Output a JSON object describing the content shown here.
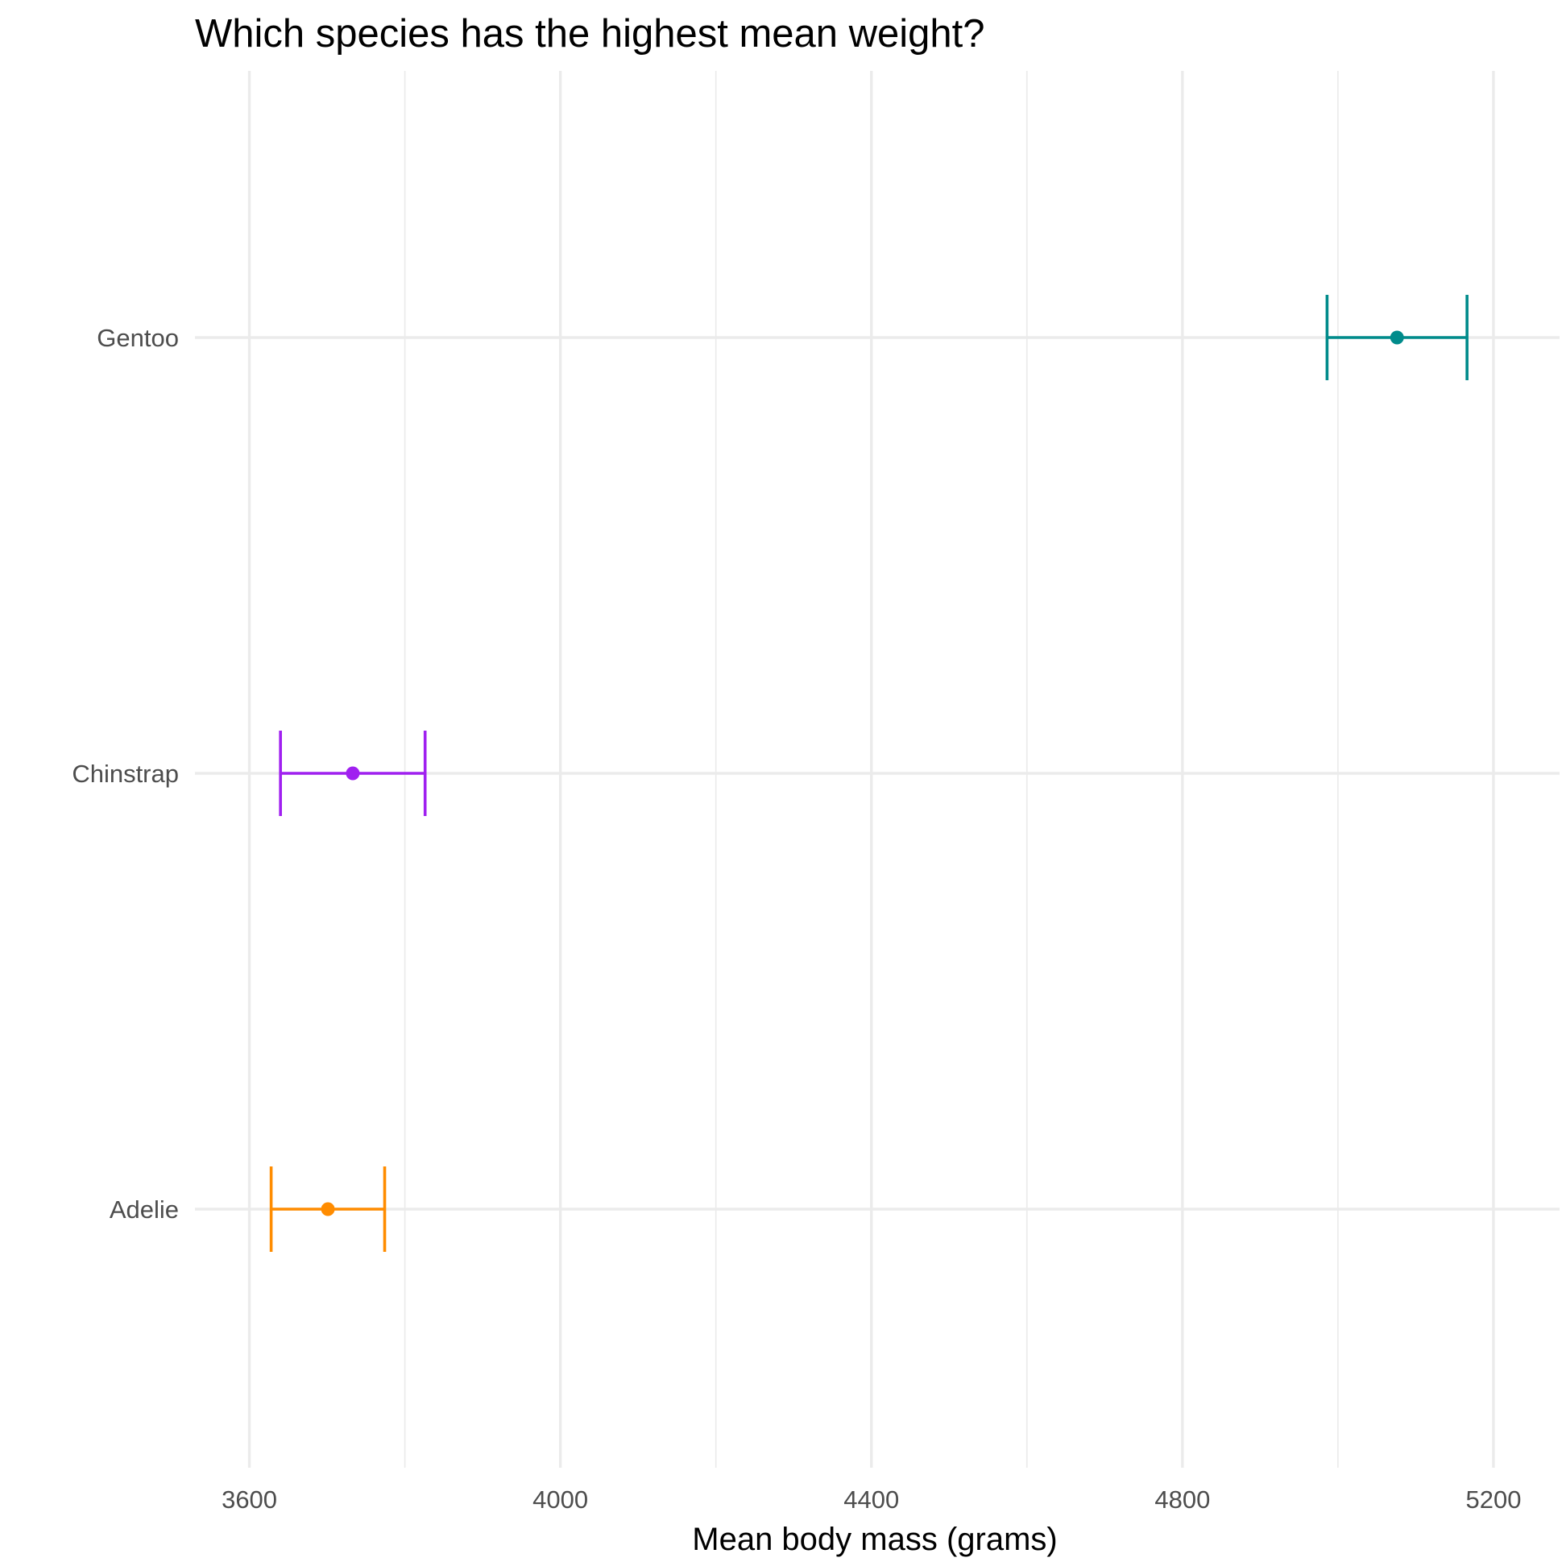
{
  "chart_data": {
    "type": "errorbar",
    "title": "Which species has the highest mean weight?",
    "xlabel": "Mean body mass (grams)",
    "ylabel": "",
    "xlim": [
      3530,
      5285
    ],
    "x_ticks": [
      3600,
      4000,
      4400,
      4800,
      5200
    ],
    "x_tick_labels": [
      "3600",
      "4000",
      "4400",
      "4800",
      "5200"
    ],
    "categories": [
      "Gentoo",
      "Chinstrap",
      "Adelie"
    ],
    "series": [
      {
        "name": "Gentoo",
        "mean": 5076,
        "lower": 4986,
        "upper": 5166,
        "color": "#008B8B"
      },
      {
        "name": "Chinstrap",
        "mean": 3733,
        "lower": 3640,
        "upper": 3826,
        "color": "#A020F0"
      },
      {
        "name": "Adelie",
        "mean": 3701,
        "lower": 3628,
        "upper": 3774,
        "color": "#FF8C00"
      }
    ],
    "grid": true,
    "legend": "none"
  }
}
